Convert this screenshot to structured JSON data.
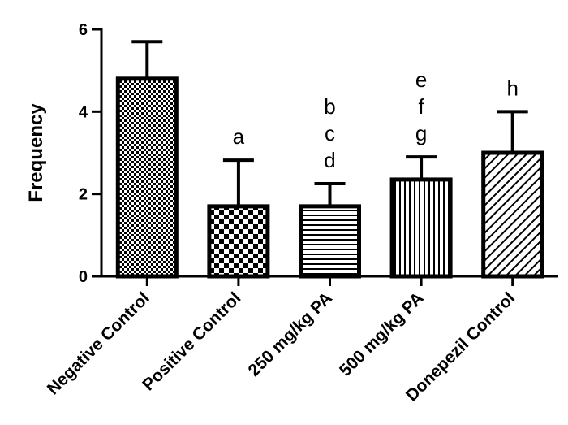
{
  "chart_data": {
    "type": "bar",
    "title": "",
    "xlabel": "",
    "ylabel": "Frequency",
    "ylim": [
      0,
      6
    ],
    "yticks": [
      "0",
      "2",
      "4",
      "6"
    ],
    "grid": false,
    "categories": [
      "Negative Control",
      "Positive Control",
      "250 mg/kg PA",
      "500 mg/kg PA",
      "Donepezil Control"
    ],
    "values": [
      4.8,
      1.7,
      1.7,
      2.35,
      3.0
    ],
    "errors": [
      0.9,
      1.12,
      0.55,
      0.55,
      1.0
    ],
    "patterns": [
      "dots",
      "checker",
      "horizontal-lines",
      "vertical-lines",
      "diagonal-lines"
    ],
    "annotations": [
      [],
      [
        "a"
      ],
      [
        "b",
        "c",
        "d"
      ],
      [
        "e",
        "f",
        "g"
      ],
      [
        "h"
      ]
    ],
    "colors": {
      "bar_stroke": "#000000",
      "pattern_ink": "#000000",
      "background": "#ffffff"
    }
  }
}
